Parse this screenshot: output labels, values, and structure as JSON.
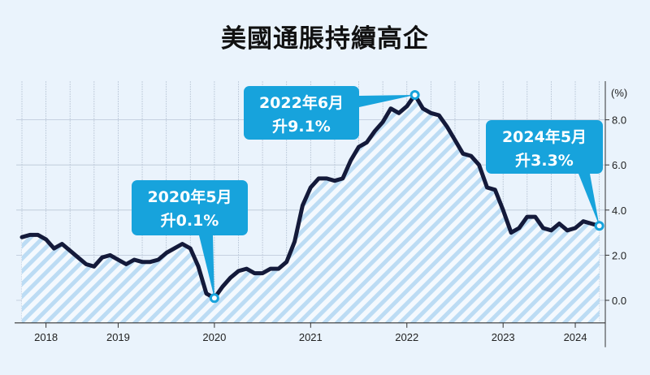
{
  "chart_data": {
    "type": "area",
    "title": "美國通脹持續高企",
    "ylabel": "(%)",
    "xlabel": "",
    "ylim": [
      -1.0,
      9.4
    ],
    "yticks": [
      "0.0",
      "2.0",
      "4.0",
      "6.0",
      "8.0"
    ],
    "xlim": [
      "2018-05",
      "2024-05"
    ],
    "xticks": [
      {
        "label": "2018",
        "at": "2018-08"
      },
      {
        "label": "2019",
        "at": "2019-05"
      },
      {
        "label": "2020",
        "at": "2020-05"
      },
      {
        "label": "2021",
        "at": "2021-05"
      },
      {
        "label": "2022",
        "at": "2022-05"
      },
      {
        "label": "2023",
        "at": "2023-05"
      },
      {
        "label": "2024",
        "at": "2024-02"
      }
    ],
    "grid": true,
    "start": "2018-05",
    "values": [
      2.8,
      2.9,
      2.9,
      2.7,
      2.3,
      2.5,
      2.2,
      1.9,
      1.6,
      1.5,
      1.9,
      2.0,
      1.8,
      1.6,
      1.8,
      1.7,
      1.7,
      1.8,
      2.1,
      2.3,
      2.5,
      2.3,
      1.5,
      0.3,
      0.1,
      0.6,
      1.0,
      1.3,
      1.4,
      1.2,
      1.2,
      1.4,
      1.4,
      1.7,
      2.6,
      4.2,
      5.0,
      5.4,
      5.4,
      5.3,
      5.4,
      6.2,
      6.8,
      7.0,
      7.5,
      7.9,
      8.5,
      8.3,
      8.6,
      9.1,
      8.5,
      8.3,
      8.2,
      7.7,
      7.1,
      6.5,
      6.4,
      6.0,
      5.0,
      4.9,
      4.0,
      3.0,
      3.2,
      3.7,
      3.7,
      3.2,
      3.1,
      3.4,
      3.1,
      3.2,
      3.5,
      3.4,
      3.3
    ],
    "annotations": [
      {
        "at": "2020-05",
        "line1": "2020年5月",
        "line2": "升0.1%"
      },
      {
        "at": "2022-06",
        "line1": "2022年6月",
        "line2": "升9.1%"
      },
      {
        "at": "2024-05",
        "line1": "2024年5月",
        "line2": "升3.3%"
      }
    ],
    "colors": {
      "line": "#141a3a",
      "fill": "#bcdcf4",
      "callout": "#17a3dc",
      "background": "#eaf3fc"
    }
  }
}
